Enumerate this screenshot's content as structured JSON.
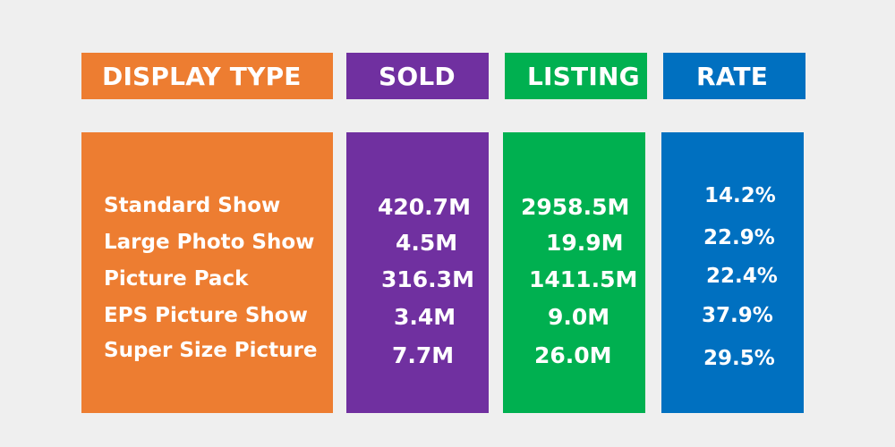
{
  "colors": {
    "background": "#efefef",
    "display_type": "#ed7d31",
    "sold": "#7030a0",
    "listing": "#00b050",
    "rate": "#0070c0",
    "text": "#ffffff"
  },
  "headers": {
    "display_type": "DISPLAY TYPE",
    "sold": "SOLD",
    "listing": "LISTING",
    "rate": "RATE"
  },
  "chart_data": {
    "type": "table",
    "columns": [
      "DISPLAY TYPE",
      "SOLD",
      "LISTING",
      "RATE"
    ],
    "rows": [
      {
        "display_type": "Standard Show",
        "sold": "420.7M",
        "listing": "2958.5M",
        "rate": "14.2%"
      },
      {
        "display_type": "Large Photo Show",
        "sold": "4.5M",
        "listing": "19.9M",
        "rate": "22.9%"
      },
      {
        "display_type": "Picture Pack",
        "sold": "316.3M",
        "listing": "1411.5M",
        "rate": "22.4%"
      },
      {
        "display_type": "EPS Picture Show",
        "sold": "3.4M",
        "listing": "9.0M",
        "rate": "37.9%"
      },
      {
        "display_type": "Super Size Picture",
        "sold": "7.7M",
        "listing": "26.0M",
        "rate": "29.5%"
      }
    ]
  }
}
